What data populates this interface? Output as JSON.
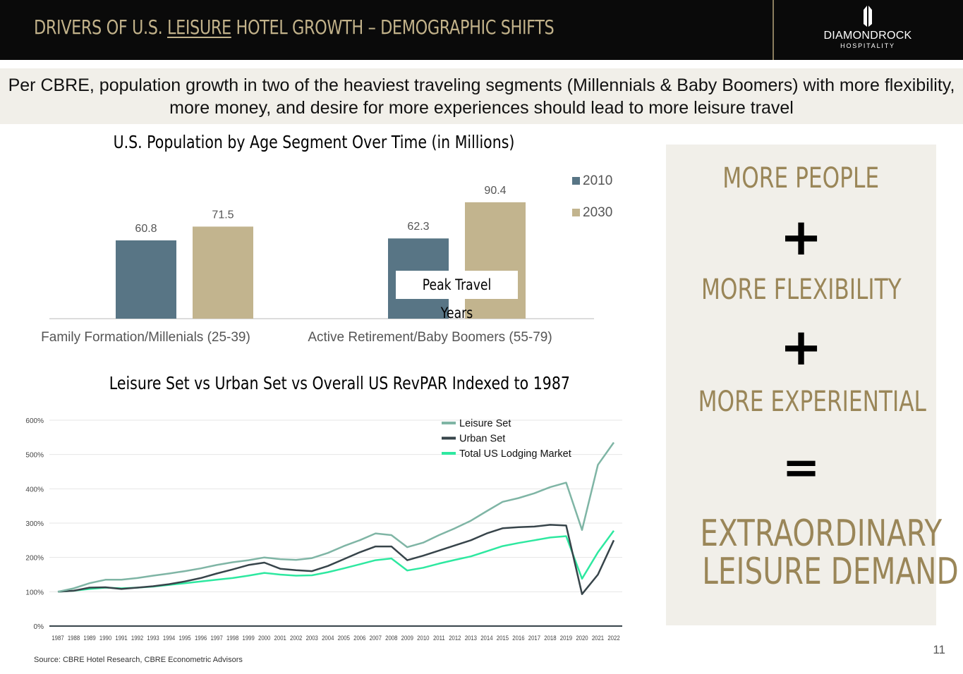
{
  "header": {
    "title_part1": "DRIVERS OF U.S. ",
    "title_underlined": "LEISURE",
    "title_part2": " HOTEL GROWTH – DEMOGRAPHIC SHIFTS",
    "logo_main": "DIAMONDROCK",
    "logo_sub": "HOSPITALITY"
  },
  "subtitle": "Per CBRE, population growth in two of the heaviest traveling segments (Millennials & Baby Boomers) with more flexibility, more money, and desire for more experiences should lead to more leisure travel",
  "colors": {
    "series_2010": "#587585",
    "series_2030": "#c2b48e",
    "leisure_set": "#7fb5a5",
    "urban_set": "#37444a",
    "total_us": "#2ee8a0",
    "accent_gold": "#9a8658"
  },
  "chart_data": [
    {
      "type": "bar",
      "title": "U.S. Population by Age Segment Over Time (in Millions)",
      "categories": [
        "Family Formation/Millenials (25-39)",
        "Active Retirement/Baby Boomers (55-79)"
      ],
      "series": [
        {
          "name": "2010",
          "values": [
            60.8,
            62.3
          ],
          "labels": [
            "60.8",
            "62.3"
          ]
        },
        {
          "name": "2030",
          "values": [
            71.5,
            90.4
          ],
          "labels": [
            "71.5",
            "90.4"
          ]
        }
      ],
      "ylim": [
        0,
        110
      ],
      "legend": "right",
      "annotation": "Peak Travel Years"
    },
    {
      "type": "line",
      "title": "Leisure Set vs Urban Set vs Overall US RevPAR Indexed to 1987",
      "x": [
        "1987",
        "1988",
        "1989",
        "1990",
        "1991",
        "1992",
        "1993",
        "1994",
        "1995",
        "1996",
        "1997",
        "1998",
        "1999",
        "2000",
        "2001",
        "2002",
        "2003",
        "2004",
        "2005",
        "2006",
        "2007",
        "2008",
        "2009",
        "2010",
        "2011",
        "2012",
        "2013",
        "2014",
        "2015",
        "2016",
        "2017",
        "2018",
        "2019",
        "2020",
        "2021",
        "2022"
      ],
      "y_ticks": [
        "0%",
        "100%",
        "200%",
        "300%",
        "400%",
        "500%",
        "600%"
      ],
      "ylim": [
        0,
        600
      ],
      "grid": true,
      "legend": "top-right",
      "series": [
        {
          "name": "Leisure Set",
          "values": [
            100,
            110,
            125,
            135,
            135,
            140,
            147,
            153,
            160,
            168,
            178,
            186,
            192,
            200,
            195,
            193,
            198,
            213,
            233,
            250,
            270,
            265,
            230,
            243,
            265,
            285,
            307,
            335,
            362,
            373,
            387,
            405,
            418,
            280,
            470,
            535
          ]
        },
        {
          "name": "Urban Set",
          "values": [
            100,
            103,
            112,
            113,
            108,
            112,
            116,
            122,
            130,
            140,
            153,
            165,
            178,
            185,
            167,
            163,
            160,
            175,
            195,
            215,
            232,
            232,
            192,
            205,
            220,
            235,
            250,
            270,
            285,
            288,
            290,
            295,
            293,
            93,
            150,
            250
          ]
        },
        {
          "name": "Total US Lodging Market",
          "values": [
            100,
            103,
            108,
            112,
            110,
            112,
            115,
            120,
            125,
            130,
            135,
            140,
            147,
            155,
            150,
            147,
            148,
            157,
            168,
            180,
            192,
            197,
            162,
            170,
            182,
            193,
            203,
            218,
            233,
            242,
            250,
            258,
            262,
            138,
            215,
            278
          ]
        }
      ]
    }
  ],
  "panel": {
    "line1": "MORE PEOPLE",
    "op1": "+",
    "line2": "MORE FLEXIBILITY",
    "op2": "+",
    "line3": "MORE EXPERIENTIAL",
    "op3": "=",
    "result_line1": "EXTRAORDINARY",
    "result_line2": "LEISURE DEMAND"
  },
  "source": "Source: CBRE Hotel Research, CBRE Econometric Advisors",
  "page_number": "11"
}
